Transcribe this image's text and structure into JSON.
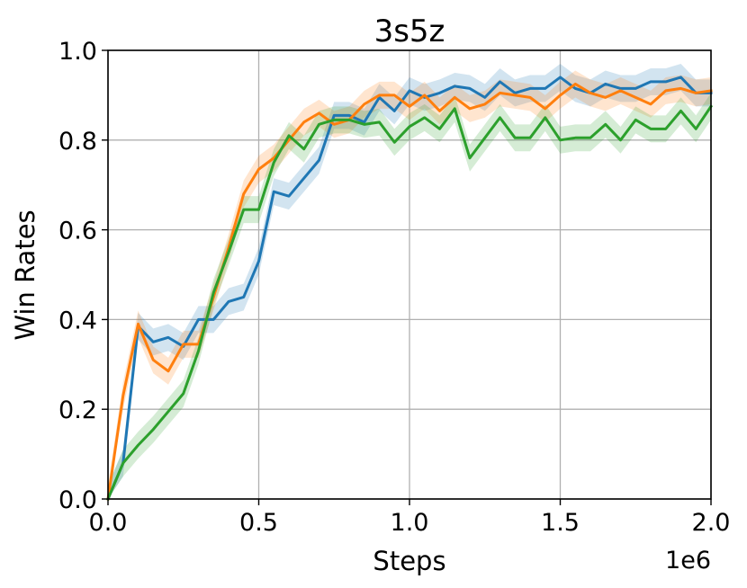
{
  "chart_data": {
    "type": "line",
    "title": "3s5z",
    "xlabel": "Steps",
    "ylabel": "Win Rates",
    "x_offset_label": "1e6",
    "xlim": [
      0.0,
      2.0
    ],
    "ylim": [
      0.0,
      1.0
    ],
    "xticks": [
      "0.0",
      "0.5",
      "1.0",
      "1.5",
      "2.0"
    ],
    "yticks": [
      "0.0",
      "0.2",
      "0.4",
      "0.6",
      "0.8",
      "1.0"
    ],
    "grid": true,
    "legend": "none",
    "x": [
      0.0,
      0.05,
      0.1,
      0.15,
      0.2,
      0.25,
      0.3,
      0.35,
      0.4,
      0.45,
      0.5,
      0.55,
      0.6,
      0.65,
      0.7,
      0.75,
      0.8,
      0.85,
      0.9,
      0.95,
      1.0,
      1.05,
      1.1,
      1.15,
      1.2,
      1.25,
      1.3,
      1.35,
      1.4,
      1.45,
      1.5,
      1.55,
      1.6,
      1.65,
      1.7,
      1.75,
      1.8,
      1.85,
      1.9,
      1.95,
      2.0
    ],
    "series": [
      {
        "color": "#1f77b4",
        "values": [
          0.0,
          0.08,
          0.385,
          0.35,
          0.36,
          0.34,
          0.4,
          0.4,
          0.44,
          0.45,
          0.53,
          0.685,
          0.675,
          0.715,
          0.755,
          0.855,
          0.855,
          0.84,
          0.895,
          0.865,
          0.91,
          0.895,
          0.905,
          0.92,
          0.915,
          0.895,
          0.93,
          0.905,
          0.915,
          0.915,
          0.94,
          0.915,
          0.905,
          0.925,
          0.915,
          0.915,
          0.93,
          0.93,
          0.94,
          0.905,
          0.905
        ],
        "band": 0.03
      },
      {
        "color": "#ff7f0e",
        "values": [
          0.0,
          0.23,
          0.39,
          0.31,
          0.285,
          0.345,
          0.345,
          0.45,
          0.56,
          0.68,
          0.735,
          0.76,
          0.8,
          0.84,
          0.86,
          0.835,
          0.845,
          0.88,
          0.9,
          0.9,
          0.875,
          0.9,
          0.865,
          0.895,
          0.87,
          0.88,
          0.905,
          0.9,
          0.895,
          0.87,
          0.9,
          0.925,
          0.905,
          0.895,
          0.91,
          0.895,
          0.88,
          0.91,
          0.915,
          0.905,
          0.91
        ],
        "band": 0.03
      },
      {
        "color": "#2ca02c",
        "values": [
          0.0,
          0.08,
          0.12,
          0.155,
          0.195,
          0.235,
          0.33,
          0.46,
          0.55,
          0.645,
          0.645,
          0.75,
          0.81,
          0.78,
          0.835,
          0.845,
          0.845,
          0.835,
          0.84,
          0.795,
          0.83,
          0.85,
          0.825,
          0.87,
          0.76,
          0.805,
          0.85,
          0.805,
          0.805,
          0.85,
          0.8,
          0.805,
          0.805,
          0.835,
          0.8,
          0.845,
          0.825,
          0.825,
          0.865,
          0.825,
          0.875
        ],
        "band": 0.03
      }
    ]
  }
}
